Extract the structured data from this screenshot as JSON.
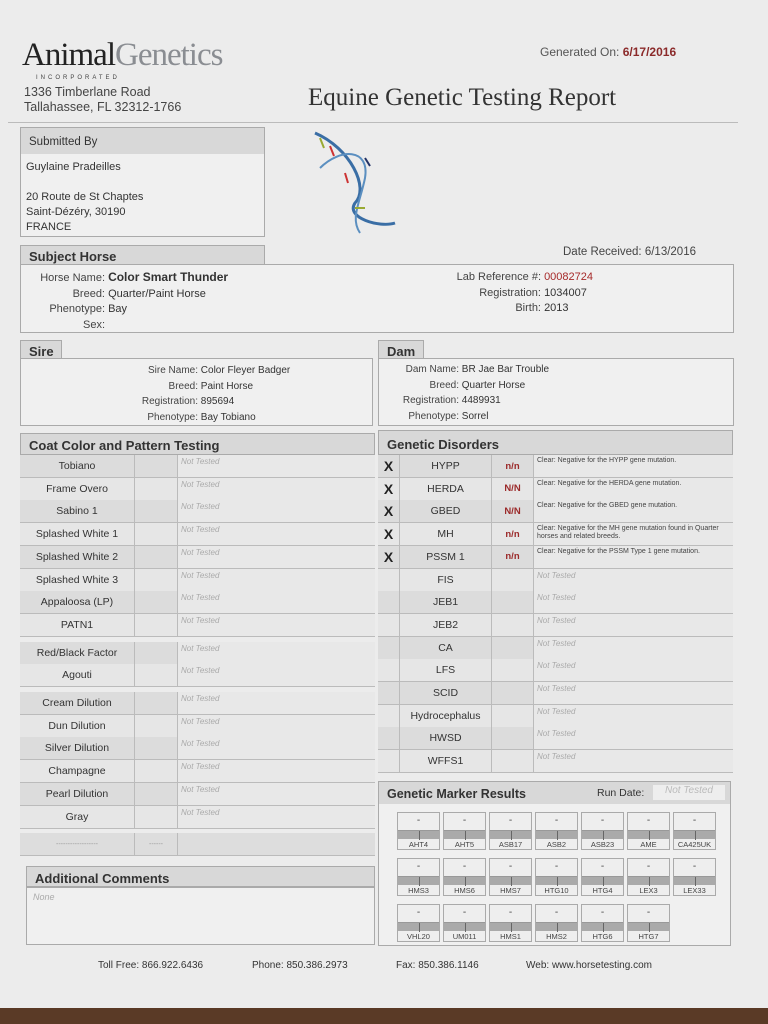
{
  "header": {
    "logo_primary": "Animal",
    "logo_secondary": "Genetics",
    "logo_tag": "INCORPORATED",
    "address_line1": "1336 Timberlane Road",
    "address_line2": "Tallahassee, FL 32312-1766",
    "generated_label": "Generated On:",
    "generated_date": "6/17/2016",
    "title": "Equine Genetic Testing Report"
  },
  "submitted": {
    "label": "Submitted By",
    "name": "Guylaine Pradeilles",
    "street": "20 Route de St Chaptes",
    "city": "Saint-Dézéry,  30190",
    "country": "FRANCE"
  },
  "subject": {
    "label": "Subject Horse",
    "date_received_label": "Date Received:",
    "date_received": "6/13/2016",
    "horse_name_label": "Horse Name:",
    "horse_name": "Color Smart Thunder",
    "breed_label": "Breed:",
    "breed": "Quarter/Paint Horse",
    "phenotype_label": "Phenotype:",
    "phenotype": "Bay",
    "sex_label": "Sex:",
    "lab_ref_label": "Lab Reference #:",
    "lab_ref": "00082724",
    "registration_label": "Registration:",
    "registration": "1034007",
    "birth_label": "Birth:",
    "birth": "2013"
  },
  "sire": {
    "label": "Sire",
    "name_label": "Sire Name:",
    "name": "Color Fleyer Badger",
    "breed_label": "Breed:",
    "breed": "Paint Horse",
    "reg_label": "Registration:",
    "reg": "895694",
    "pheno_label": "Phenotype:",
    "pheno": "Bay Tobiano"
  },
  "dam": {
    "label": "Dam",
    "name_label": "Dam Name:",
    "name": "BR Jae Bar Trouble",
    "breed_label": "Breed:",
    "breed": "Quarter Horse",
    "reg_label": "Registration:",
    "reg": "4489931",
    "pheno_label": "Phenotype:",
    "pheno": "Sorrel"
  },
  "coat": {
    "label": "Coat Color and Pattern Testing",
    "not_tested": "Not Tested",
    "groups": [
      [
        "Tobiano",
        "Frame Overo",
        "Sabino 1",
        "Splashed White 1",
        "Splashed White 2",
        "Splashed White 3",
        "Appaloosa (LP)",
        "PATN1"
      ],
      [
        "Red/Black Factor",
        "Agouti"
      ],
      [
        "Cream Dilution",
        "Dun Dilution",
        "Silver Dilution",
        "Champagne",
        "Pearl Dilution",
        "Gray"
      ]
    ],
    "blank_row": [
      "------------------",
      "------"
    ]
  },
  "disorders": {
    "label": "Genetic Disorders",
    "rows": [
      {
        "mark": "X",
        "test": "HYPP",
        "result": "n/n",
        "note": "Clear: Negative for the HYPP gene mutation."
      },
      {
        "mark": "X",
        "test": "HERDA",
        "result": "N/N",
        "note": "Clear: Negative for the HERDA gene mutation."
      },
      {
        "mark": "X",
        "test": "GBED",
        "result": "N/N",
        "note": "Clear: Negative for the GBED gene mutation."
      },
      {
        "mark": "X",
        "test": "MH",
        "result": "n/n",
        "note": "Clear: Negative for the MH gene mutation found in Quarter horses and related breeds."
      },
      {
        "mark": "X",
        "test": "PSSM 1",
        "result": "n/n",
        "note": "Clear: Negative for the PSSM Type 1 gene mutation."
      },
      {
        "mark": "",
        "test": "FIS",
        "result": "",
        "note": "Not Tested"
      },
      {
        "mark": "",
        "test": "JEB1",
        "result": "",
        "note": "Not Tested"
      },
      {
        "mark": "",
        "test": "JEB2",
        "result": "",
        "note": "Not Tested"
      },
      {
        "mark": "",
        "test": "CA",
        "result": "",
        "note": "Not Tested"
      },
      {
        "mark": "",
        "test": "LFS",
        "result": "",
        "note": "Not Tested"
      },
      {
        "mark": "",
        "test": "SCID",
        "result": "",
        "note": "Not Tested"
      },
      {
        "mark": "",
        "test": "Hydrocephalus",
        "result": "",
        "note": "Not Tested"
      },
      {
        "mark": "",
        "test": "HWSD",
        "result": "",
        "note": "Not Tested"
      },
      {
        "mark": "",
        "test": "WFFS1",
        "result": "",
        "note": "Not Tested"
      }
    ]
  },
  "markers": {
    "label": "Genetic Marker Results",
    "run_date_label": "Run Date:",
    "run_date": "Not Tested",
    "value": "-",
    "names": [
      "AHT4",
      "AHT5",
      "ASB17",
      "ASB2",
      "ASB23",
      "AME",
      "CA425UK",
      "HMS3",
      "HMS6",
      "HMS7",
      "HTG10",
      "HTG4",
      "LEX3",
      "LEX33",
      "VHL20",
      "UM011",
      "HMS1",
      "HMS2",
      "HTG6",
      "HTG7"
    ]
  },
  "comments": {
    "label": "Additional Comments",
    "text": "None"
  },
  "footer": {
    "toll_free": "Toll Free: 866.922.6436",
    "phone": "Phone: 850.386.2973",
    "fax": "Fax: 850.386.1146",
    "web": "Web: www.horsetesting.com"
  }
}
